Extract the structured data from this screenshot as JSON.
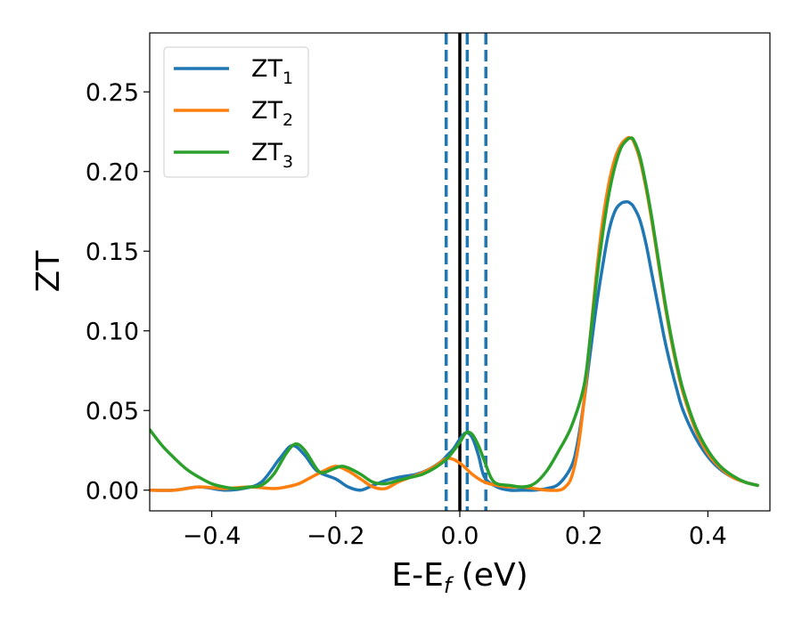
{
  "chart_data": {
    "type": "line",
    "xlabel": "E-E",
    "xlabel_sub": "f",
    "xlabel_suffix": " (eV)",
    "ylabel": "ZT",
    "xlim": [
      -0.5,
      0.5
    ],
    "ylim": [
      -0.013,
      0.287
    ],
    "xticks": [
      -0.4,
      -0.2,
      0.0,
      0.2,
      0.4
    ],
    "xtick_labels": [
      "−0.4",
      "−0.2",
      "0.0",
      "0.2",
      "0.4"
    ],
    "yticks": [
      0.0,
      0.05,
      0.1,
      0.15,
      0.2,
      0.25
    ],
    "ytick_labels": [
      "0.00",
      "0.05",
      "0.10",
      "0.15",
      "0.20",
      "0.25"
    ],
    "grid": false,
    "legend_position": "top-left",
    "vlines": [
      {
        "x": 0.0,
        "style": "solid",
        "color": "#000000"
      },
      {
        "x": -0.022,
        "style": "dashed",
        "color": "#1f77b4"
      },
      {
        "x": 0.012,
        "style": "dashed",
        "color": "#1f77b4"
      },
      {
        "x": 0.042,
        "style": "dashed",
        "color": "#1f77b4"
      }
    ],
    "series": [
      {
        "name": "ZT",
        "name_sub": "1",
        "color": "#1f77b4",
        "x": [
          -0.5,
          -0.46,
          -0.42,
          -0.38,
          -0.35,
          -0.32,
          -0.29,
          -0.27,
          -0.25,
          -0.23,
          -0.2,
          -0.18,
          -0.16,
          -0.14,
          -0.12,
          -0.1,
          -0.07,
          -0.05,
          -0.03,
          -0.02,
          -0.01,
          0.0,
          0.01,
          0.02,
          0.03,
          0.04,
          0.06,
          0.08,
          0.1,
          0.12,
          0.14,
          0.16,
          0.18,
          0.19,
          0.2,
          0.21,
          0.22,
          0.23,
          0.24,
          0.25,
          0.26,
          0.27,
          0.275,
          0.28,
          0.29,
          0.3,
          0.31,
          0.32,
          0.33,
          0.34,
          0.35,
          0.36,
          0.38,
          0.4,
          0.42,
          0.44,
          0.46,
          0.48
        ],
        "values": [
          0.0,
          0.0,
          0.002,
          0.0,
          0.001,
          0.005,
          0.02,
          0.028,
          0.022,
          0.012,
          0.007,
          0.002,
          0.0,
          0.003,
          0.006,
          0.008,
          0.01,
          0.013,
          0.018,
          0.022,
          0.026,
          0.032,
          0.036,
          0.033,
          0.022,
          0.008,
          0.002,
          0.0,
          0.0,
          0.0,
          0.001,
          0.004,
          0.015,
          0.03,
          0.055,
          0.085,
          0.115,
          0.14,
          0.162,
          0.175,
          0.18,
          0.181,
          0.18,
          0.178,
          0.17,
          0.155,
          0.135,
          0.115,
          0.095,
          0.078,
          0.063,
          0.05,
          0.033,
          0.021,
          0.013,
          0.008,
          0.005,
          0.003
        ]
      },
      {
        "name": "ZT",
        "name_sub": "2",
        "color": "#ff7f0e",
        "x": [
          -0.5,
          -0.46,
          -0.42,
          -0.38,
          -0.34,
          -0.3,
          -0.28,
          -0.26,
          -0.24,
          -0.22,
          -0.2,
          -0.18,
          -0.16,
          -0.14,
          -0.12,
          -0.1,
          -0.08,
          -0.06,
          -0.04,
          -0.02,
          0.0,
          0.02,
          0.04,
          0.06,
          0.08,
          0.1,
          0.12,
          0.14,
          0.16,
          0.17,
          0.18,
          0.19,
          0.2,
          0.21,
          0.22,
          0.23,
          0.24,
          0.25,
          0.26,
          0.27,
          0.275,
          0.28,
          0.29,
          0.3,
          0.31,
          0.32,
          0.33,
          0.34,
          0.35,
          0.36,
          0.38,
          0.4,
          0.42,
          0.44,
          0.46,
          0.48
        ],
        "values": [
          0.0,
          0.0,
          0.002,
          0.001,
          0.002,
          0.001,
          0.002,
          0.004,
          0.008,
          0.012,
          0.015,
          0.012,
          0.007,
          0.002,
          0.001,
          0.005,
          0.008,
          0.011,
          0.015,
          0.02,
          0.017,
          0.01,
          0.005,
          0.003,
          0.002,
          0.002,
          0.001,
          0.0,
          0.0,
          0.002,
          0.008,
          0.025,
          0.055,
          0.095,
          0.135,
          0.168,
          0.192,
          0.208,
          0.217,
          0.221,
          0.221,
          0.219,
          0.208,
          0.19,
          0.168,
          0.143,
          0.118,
          0.096,
          0.077,
          0.061,
          0.038,
          0.023,
          0.014,
          0.008,
          0.005,
          0.003
        ]
      },
      {
        "name": "ZT",
        "name_sub": "3",
        "color": "#2ca02c",
        "x": [
          -0.5,
          -0.48,
          -0.46,
          -0.44,
          -0.42,
          -0.4,
          -0.38,
          -0.36,
          -0.34,
          -0.32,
          -0.3,
          -0.28,
          -0.265,
          -0.25,
          -0.23,
          -0.22,
          -0.2,
          -0.19,
          -0.18,
          -0.16,
          -0.14,
          -0.12,
          -0.1,
          -0.08,
          -0.06,
          -0.04,
          -0.02,
          0.0,
          0.01,
          0.02,
          0.03,
          0.04,
          0.05,
          0.06,
          0.08,
          0.1,
          0.12,
          0.14,
          0.16,
          0.18,
          0.2,
          0.21,
          0.22,
          0.23,
          0.24,
          0.25,
          0.26,
          0.27,
          0.275,
          0.28,
          0.29,
          0.3,
          0.31,
          0.32,
          0.33,
          0.34,
          0.35,
          0.36,
          0.38,
          0.4,
          0.42,
          0.44,
          0.46,
          0.48
        ],
        "values": [
          0.038,
          0.028,
          0.02,
          0.013,
          0.008,
          0.004,
          0.002,
          0.001,
          0.002,
          0.003,
          0.01,
          0.023,
          0.029,
          0.025,
          0.013,
          0.011,
          0.014,
          0.015,
          0.014,
          0.01,
          0.005,
          0.004,
          0.006,
          0.008,
          0.01,
          0.014,
          0.02,
          0.03,
          0.036,
          0.035,
          0.028,
          0.018,
          0.008,
          0.004,
          0.003,
          0.002,
          0.004,
          0.012,
          0.025,
          0.04,
          0.065,
          0.095,
          0.13,
          0.16,
          0.185,
          0.203,
          0.215,
          0.22,
          0.221,
          0.22,
          0.21,
          0.192,
          0.17,
          0.145,
          0.12,
          0.098,
          0.079,
          0.063,
          0.04,
          0.025,
          0.015,
          0.009,
          0.005,
          0.003
        ]
      }
    ]
  }
}
